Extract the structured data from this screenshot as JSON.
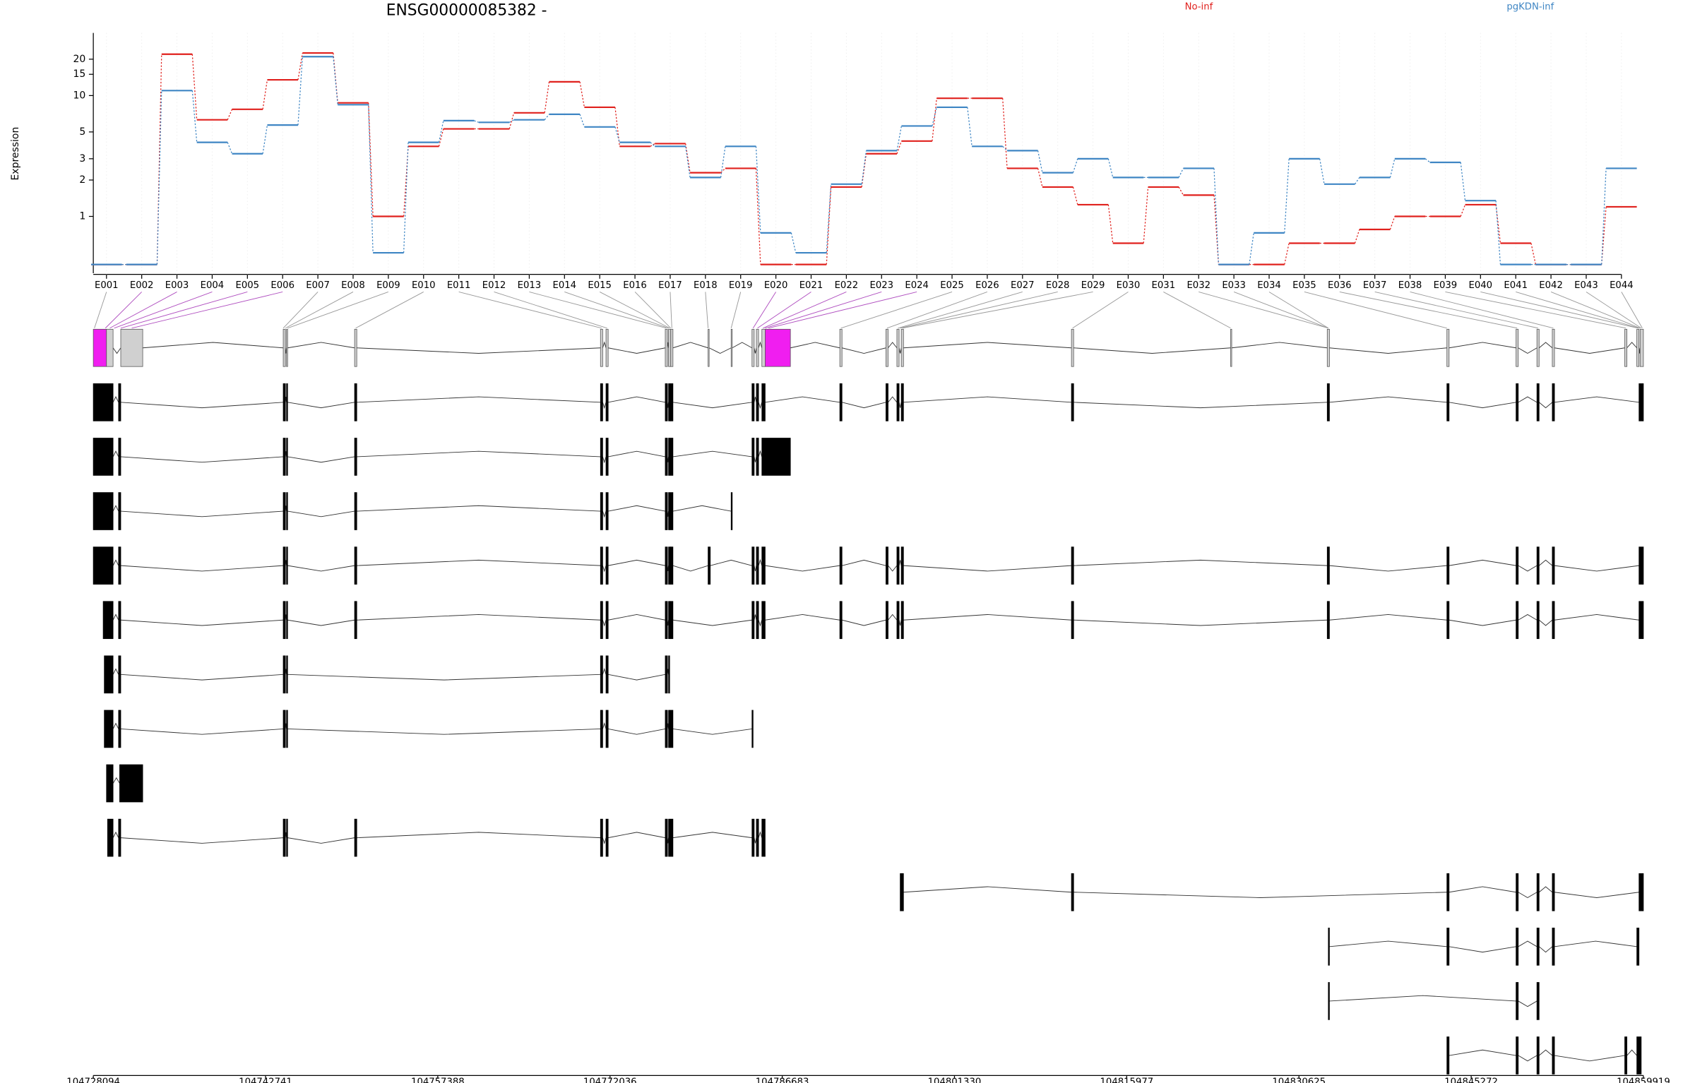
{
  "chart_data": {
    "type": "line",
    "title": "ENSG00000085382 -",
    "ylabel": "Expression",
    "categories": [
      "E001",
      "E002",
      "E003",
      "E004",
      "E005",
      "E006",
      "E007",
      "E008",
      "E009",
      "E010",
      "E011",
      "E012",
      "E013",
      "E014",
      "E015",
      "E016",
      "E017",
      "E018",
      "E019",
      "E020",
      "E021",
      "E022",
      "E023",
      "E024",
      "E025",
      "E026",
      "E027",
      "E028",
      "E029",
      "E030",
      "E031",
      "E032",
      "E033",
      "E034",
      "E035",
      "E036",
      "E037",
      "E038",
      "E039",
      "E040",
      "E041",
      "E042",
      "E043",
      "E044"
    ],
    "series": [
      {
        "name": "No-inf",
        "color": "#e0211d",
        "values": [
          0.4,
          0.4,
          22,
          6.3,
          7.7,
          13.5,
          22.5,
          8.7,
          1.0,
          3.8,
          5.3,
          5.3,
          7.2,
          13,
          8,
          3.8,
          4.0,
          2.3,
          2.5,
          0.4,
          0.4,
          1.75,
          3.3,
          4.2,
          9.5,
          9.5,
          2.5,
          1.75,
          1.25,
          0.6,
          1.75,
          1.5,
          0.4,
          0.4,
          0.6,
          0.6,
          0.78,
          1.0,
          1.0,
          1.25,
          0.6,
          0.4,
          0.4,
          1.2
        ]
      },
      {
        "name": "pgKDN-inf",
        "color": "#3f86c4",
        "values": [
          0.4,
          0.4,
          11,
          4.1,
          3.3,
          5.7,
          21,
          8.4,
          0.5,
          4.1,
          6.2,
          6.0,
          6.3,
          7.0,
          5.5,
          4.1,
          3.8,
          2.1,
          3.8,
          0.73,
          0.5,
          1.85,
          3.5,
          5.6,
          8.0,
          3.8,
          3.5,
          2.3,
          3.0,
          2.1,
          2.1,
          2.5,
          0.4,
          0.73,
          3.0,
          1.85,
          2.1,
          3.0,
          2.8,
          1.35,
          0.4,
          0.4,
          0.4,
          2.5
        ]
      }
    ],
    "ylim": [
      0.4,
      33
    ],
    "yticks": [
      1,
      2,
      3,
      5,
      10,
      15,
      20
    ],
    "log_scale": true,
    "grid": true,
    "legend": "top",
    "genome_axis": {
      "xlim": [
        104728094,
        104859919
      ],
      "xticks": [
        104728094,
        104742741,
        104757388,
        104772036,
        104786683,
        104801330,
        104815977,
        104830625,
        104845272,
        104859919
      ]
    }
  }
}
